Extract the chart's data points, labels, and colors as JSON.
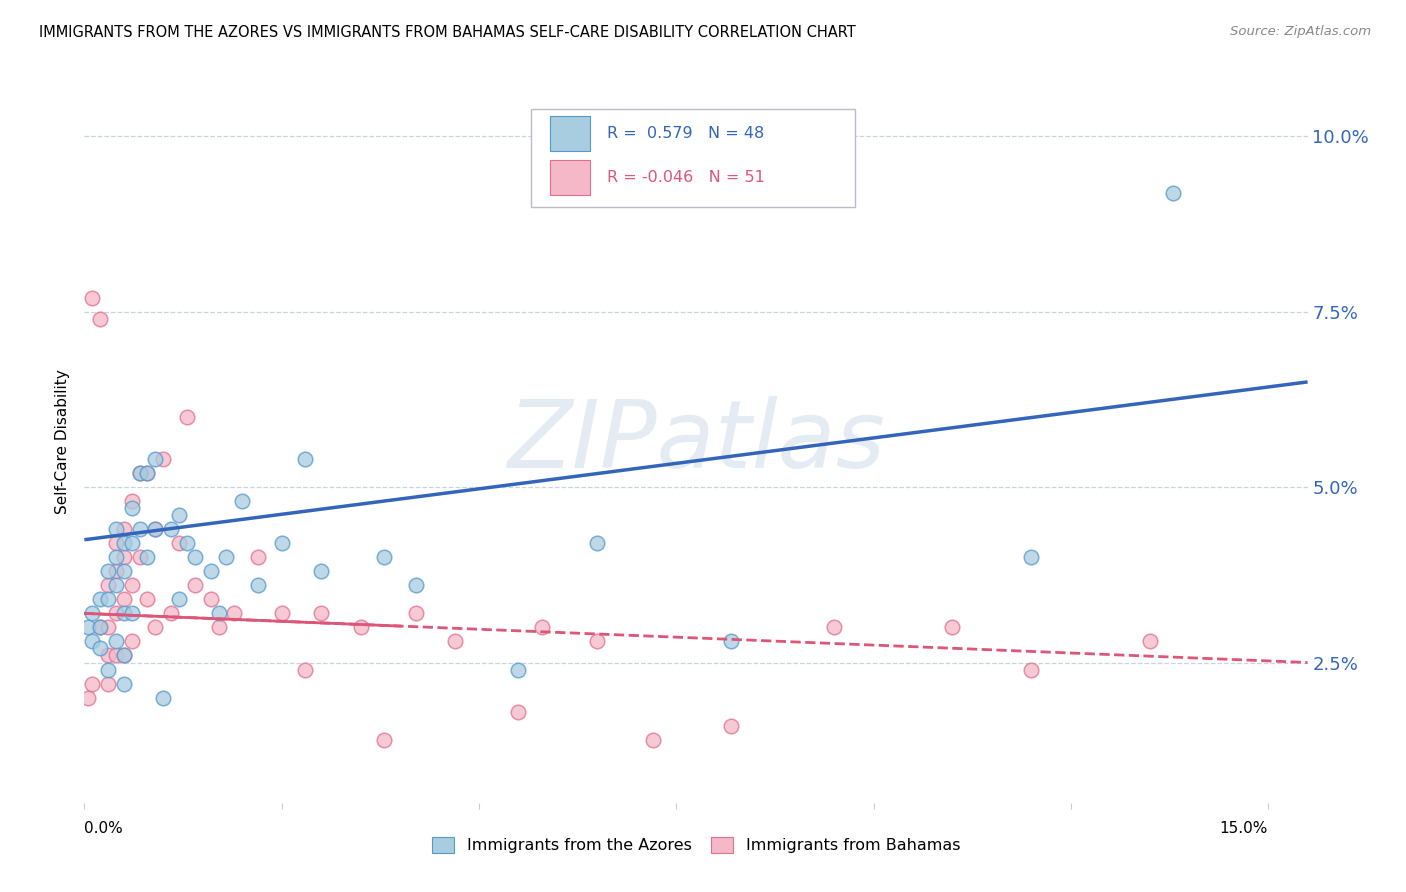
{
  "title": "IMMIGRANTS FROM THE AZORES VS IMMIGRANTS FROM BAHAMAS SELF-CARE DISABILITY CORRELATION CHART",
  "source": "Source: ZipAtlas.com",
  "ylabel": "Self-Care Disability",
  "right_yticks": [
    "2.5%",
    "5.0%",
    "7.5%",
    "10.0%"
  ],
  "right_ytick_vals": [
    0.025,
    0.05,
    0.075,
    0.1
  ],
  "xlim": [
    0.0,
    0.155
  ],
  "ylim": [
    0.005,
    0.108
  ],
  "legend1_r": "0.579",
  "legend1_n": "48",
  "legend2_r": "-0.046",
  "legend2_n": "51",
  "blue_fill": "#a8cce0",
  "pink_fill": "#f5b8c8",
  "blue_edge": "#5599cc",
  "pink_edge": "#e07090",
  "blue_line": "#3366bb",
  "pink_line": "#dd5577",
  "watermark": "ZIPatlas",
  "azores_x": [
    0.0005,
    0.001,
    0.001,
    0.002,
    0.002,
    0.002,
    0.003,
    0.003,
    0.003,
    0.004,
    0.004,
    0.004,
    0.004,
    0.005,
    0.005,
    0.005,
    0.005,
    0.005,
    0.006,
    0.006,
    0.006,
    0.007,
    0.007,
    0.008,
    0.008,
    0.009,
    0.009,
    0.01,
    0.011,
    0.012,
    0.012,
    0.013,
    0.014,
    0.016,
    0.017,
    0.018,
    0.02,
    0.022,
    0.025,
    0.028,
    0.03,
    0.038,
    0.042,
    0.055,
    0.065,
    0.082,
    0.12,
    0.138
  ],
  "azores_y": [
    0.03,
    0.032,
    0.028,
    0.034,
    0.03,
    0.027,
    0.038,
    0.034,
    0.024,
    0.044,
    0.04,
    0.036,
    0.028,
    0.042,
    0.038,
    0.032,
    0.026,
    0.022,
    0.047,
    0.042,
    0.032,
    0.052,
    0.044,
    0.052,
    0.04,
    0.054,
    0.044,
    0.02,
    0.044,
    0.046,
    0.034,
    0.042,
    0.04,
    0.038,
    0.032,
    0.04,
    0.048,
    0.036,
    0.042,
    0.054,
    0.038,
    0.04,
    0.036,
    0.024,
    0.042,
    0.028,
    0.04,
    0.092
  ],
  "bahamas_x": [
    0.0005,
    0.001,
    0.001,
    0.002,
    0.002,
    0.003,
    0.003,
    0.003,
    0.003,
    0.004,
    0.004,
    0.004,
    0.004,
    0.005,
    0.005,
    0.005,
    0.005,
    0.006,
    0.006,
    0.006,
    0.007,
    0.007,
    0.008,
    0.008,
    0.009,
    0.009,
    0.01,
    0.011,
    0.012,
    0.013,
    0.014,
    0.016,
    0.017,
    0.019,
    0.022,
    0.025,
    0.028,
    0.03,
    0.035,
    0.038,
    0.042,
    0.047,
    0.055,
    0.058,
    0.065,
    0.072,
    0.082,
    0.095,
    0.11,
    0.12,
    0.135
  ],
  "bahamas_y": [
    0.02,
    0.022,
    0.077,
    0.074,
    0.03,
    0.036,
    0.03,
    0.026,
    0.022,
    0.042,
    0.038,
    0.032,
    0.026,
    0.044,
    0.04,
    0.034,
    0.026,
    0.048,
    0.036,
    0.028,
    0.052,
    0.04,
    0.052,
    0.034,
    0.044,
    0.03,
    0.054,
    0.032,
    0.042,
    0.06,
    0.036,
    0.034,
    0.03,
    0.032,
    0.04,
    0.032,
    0.024,
    0.032,
    0.03,
    0.014,
    0.032,
    0.028,
    0.018,
    0.03,
    0.028,
    0.014,
    0.016,
    0.03,
    0.03,
    0.024,
    0.028
  ],
  "blue_line_x0": 0.0,
  "blue_line_y0": 0.0425,
  "blue_line_x1": 0.155,
  "blue_line_y1": 0.065,
  "pink_line_x0": 0.0,
  "pink_line_y0": 0.032,
  "pink_line_x1": 0.155,
  "pink_line_y1": 0.025
}
